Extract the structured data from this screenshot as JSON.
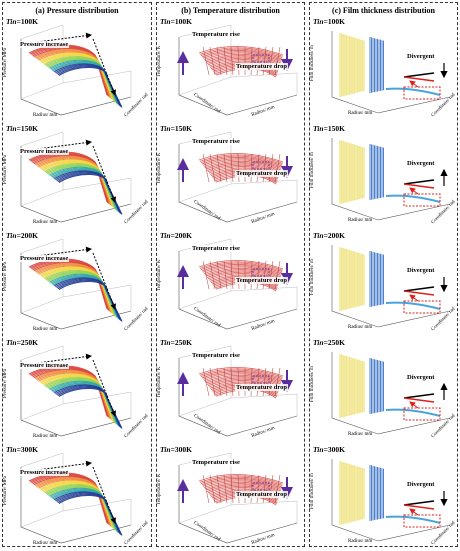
{
  "columns": [
    {
      "title": "(a) Pressure distribution"
    },
    {
      "title": "(b) Temperature distribution"
    },
    {
      "title": "(c) Film thickness distribution"
    }
  ],
  "rows": [
    {
      "tin_label": "Tin",
      "tin_value": "=100K"
    },
    {
      "tin_label": "Tin",
      "tin_value": "=150K"
    },
    {
      "tin_label": "Tin",
      "tin_value": "=200K"
    },
    {
      "tin_label": "Tin",
      "tin_value": "=250K"
    },
    {
      "tin_label": "Tin",
      "tin_value": "=300K"
    }
  ],
  "annotations": {
    "pressure_increase": "Pressure increase",
    "temperature_rise": "Temperature rise",
    "temperature_drop": "Temperature drop",
    "divergent": "Divergent"
  },
  "axes": {
    "pressure": "Pressure/ MPa",
    "temperature": "Temperature/ K",
    "film": "Film thickness/ m",
    "radius": "Radius/ mm",
    "coordinate": "Coordinate/ rad"
  },
  "colors": {
    "pressure_surface": [
      "#1f3a93",
      "#2ca5a5",
      "#8fd14f",
      "#f2d43d",
      "#f08a3c",
      "#d9453b"
    ],
    "temperature_surface": "#d9534f",
    "film_surface": "#f0e68c",
    "arrow_purple": "#5a2d9e",
    "dashed_red": "#e0201a"
  }
}
